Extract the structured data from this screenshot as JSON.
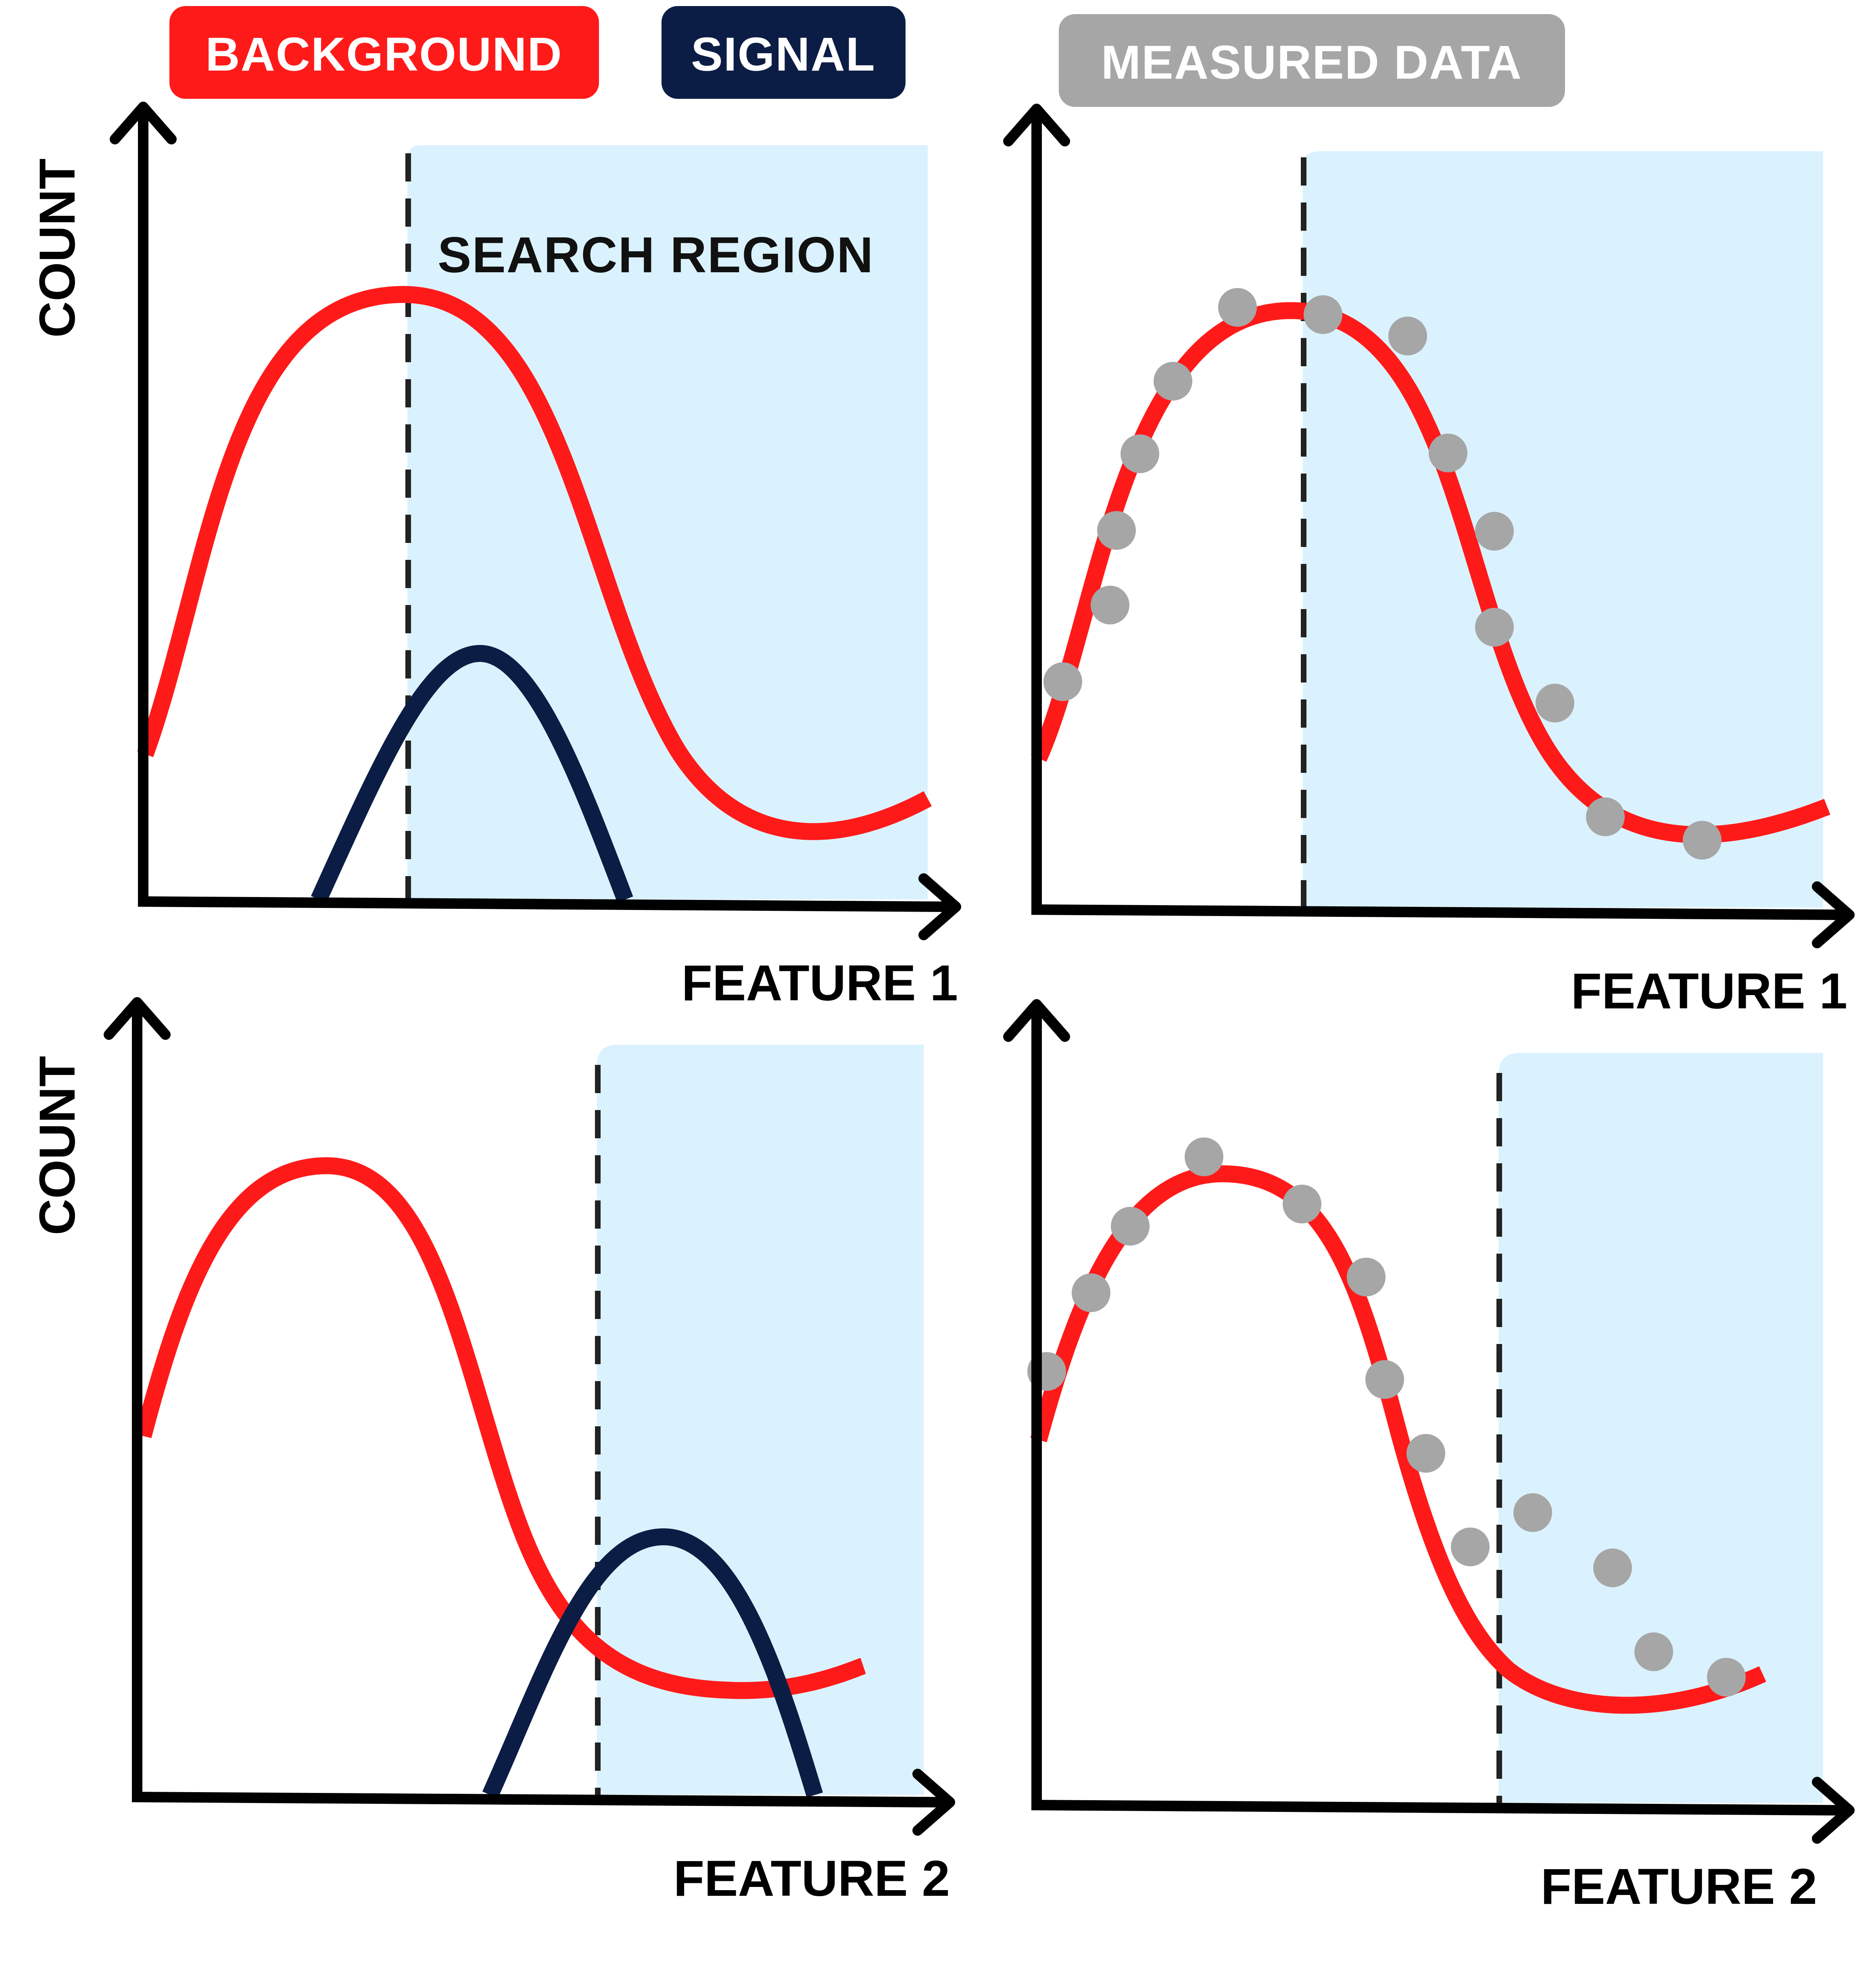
{
  "legend": {
    "background": {
      "label": "BACKGROUND",
      "color": "#ff1a1a"
    },
    "signal": {
      "label": "SIGNAL",
      "color": "#0c1d45"
    },
    "measured": {
      "label": "MEASURED DATA",
      "color": "#a6a6a6"
    }
  },
  "region_color": "#daf2fd",
  "panels": [
    {
      "id": "top-left",
      "y_label": "COUNT",
      "x_label": "FEATURE 1",
      "region_label": "SEARCH REGION",
      "show_signal": true,
      "show_data": false
    },
    {
      "id": "top-right",
      "y_label": "",
      "x_label": "FEATURE 1",
      "region_label": "",
      "show_signal": false,
      "show_data": true
    },
    {
      "id": "bottom-left",
      "y_label": "COUNT",
      "x_label": "FEATURE 2",
      "region_label": "",
      "show_signal": true,
      "show_data": false
    },
    {
      "id": "bottom-right",
      "y_label": "",
      "x_label": "FEATURE 2",
      "region_label": "",
      "show_signal": false,
      "show_data": true
    }
  ]
}
